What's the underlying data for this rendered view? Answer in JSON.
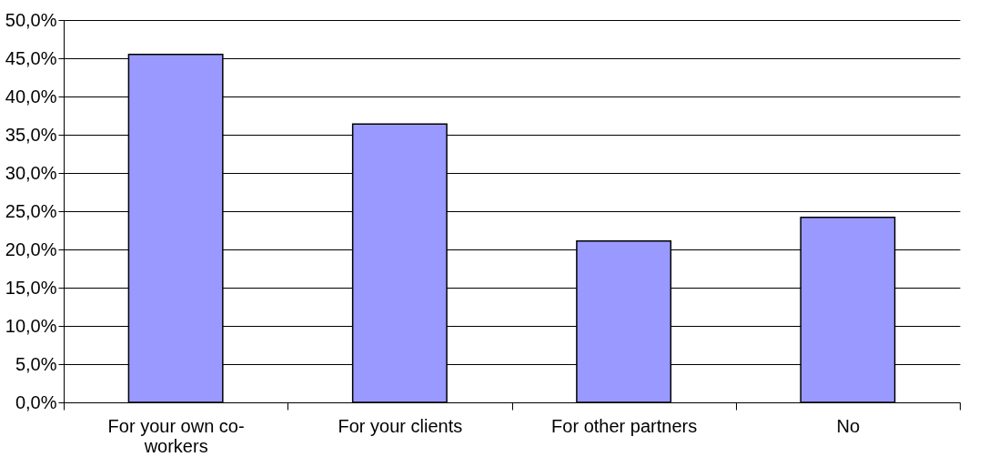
{
  "chart_data": {
    "type": "bar",
    "categories": [
      "For your own co-workers",
      "For your clients",
      "For other partners",
      "No"
    ],
    "values": [
      45.5,
      36.4,
      21.1,
      24.2
    ],
    "color": "#9999ff",
    "ylim": [
      0,
      50
    ],
    "yticks": [
      {
        "value": 0,
        "label": "0,0%"
      },
      {
        "value": 5,
        "label": "5,0%"
      },
      {
        "value": 10,
        "label": "10,0%"
      },
      {
        "value": 15,
        "label": "15,0%"
      },
      {
        "value": 20,
        "label": "20,0%"
      },
      {
        "value": 25,
        "label": "25,0%"
      },
      {
        "value": 30,
        "label": "30,0%"
      },
      {
        "value": 35,
        "label": "35,0%"
      },
      {
        "value": 40,
        "label": "40,0%"
      },
      {
        "value": 45,
        "label": "45,0%"
      },
      {
        "value": 50,
        "label": "50,0%"
      }
    ],
    "grid": "y"
  }
}
